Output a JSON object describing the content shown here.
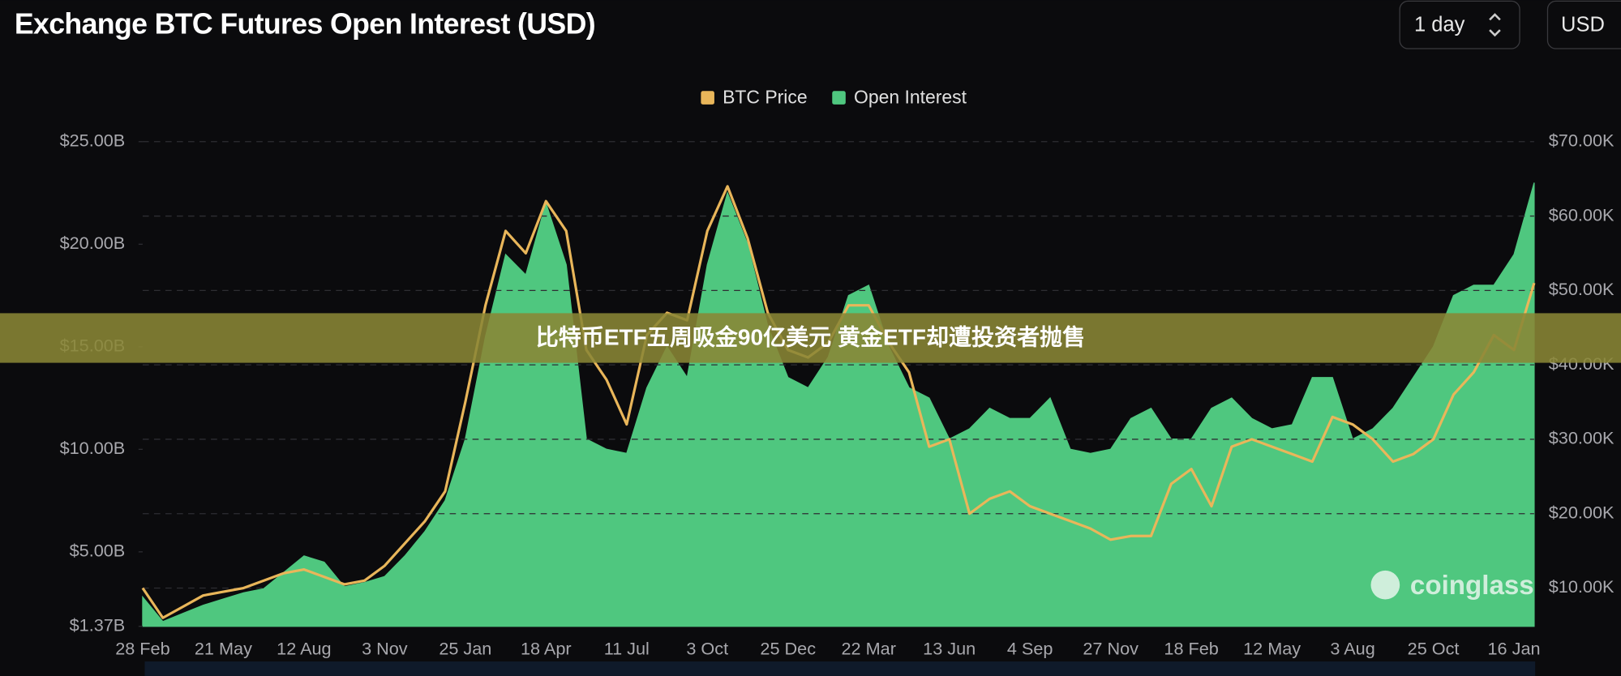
{
  "chart_data": {
    "type": "area-line",
    "title": "Exchange BTC Futures Open Interest (USD)",
    "categories": [
      "28 Feb",
      null,
      null,
      null,
      "21 May",
      null,
      null,
      null,
      "12 Aug",
      null,
      null,
      null,
      "3 Nov",
      null,
      null,
      null,
      "25 Jan",
      null,
      null,
      null,
      "18 Apr",
      null,
      null,
      null,
      "11 Jul",
      null,
      null,
      null,
      "3 Oct",
      null,
      null,
      null,
      "25 Dec",
      null,
      null,
      null,
      "22 Mar",
      null,
      null,
      null,
      "13 Jun",
      null,
      null,
      null,
      "4 Sep",
      null,
      null,
      null,
      "27 Nov",
      null,
      null,
      null,
      "18 Feb",
      null,
      null,
      null,
      "12 May",
      null,
      null,
      null,
      "3 Aug",
      null,
      null,
      null,
      "25 Oct",
      null,
      null,
      null,
      "16 Jan",
      null
    ],
    "series": [
      {
        "name": "BTC Price",
        "color": "#e9b65a",
        "axis": "y2",
        "values": [
          10,
          6,
          7.5,
          9,
          9.5,
          10,
          11,
          12,
          12.5,
          11.5,
          10.5,
          11,
          13,
          16,
          19,
          23,
          35,
          48,
          58,
          55,
          62,
          58,
          42,
          38,
          32,
          44,
          47,
          46,
          58,
          64,
          57,
          47,
          42,
          41,
          43,
          48,
          48,
          43,
          39,
          29,
          30,
          20,
          22,
          23,
          21,
          20,
          19,
          18,
          16.5,
          17,
          17,
          24,
          26,
          21,
          29,
          30,
          29,
          28,
          27,
          33,
          32,
          30,
          27,
          28,
          30,
          36,
          39,
          44,
          42,
          51
        ]
      },
      {
        "name": "Open Interest",
        "color": "#4fc77f",
        "values": [
          2.8,
          1.6,
          2.0,
          2.4,
          2.7,
          3.0,
          3.2,
          4.0,
          4.8,
          4.5,
          3.3,
          3.5,
          3.8,
          4.8,
          6.0,
          7.5,
          10.5,
          15.5,
          19.5,
          18.5,
          22.0,
          19.0,
          10.5,
          10.0,
          9.8,
          13.0,
          15.0,
          13.5,
          19.0,
          22.5,
          20.0,
          16.0,
          13.5,
          13.0,
          14.5,
          17.5,
          18.0,
          15.0,
          13.0,
          12.5,
          10.5,
          11.0,
          12.0,
          11.5,
          11.5,
          12.5,
          10.0,
          9.8,
          10.0,
          11.5,
          12.0,
          10.5,
          10.5,
          12.0,
          12.5,
          11.5,
          11.0,
          11.2,
          13.5,
          13.5,
          10.5,
          11.0,
          12.0,
          13.5,
          15.0,
          17.5,
          18.0,
          18.0,
          19.5,
          23.0
        ]
      }
    ],
    "ylim": [
      1.37,
      25
    ],
    "yticks": [
      {
        "value": 1.37,
        "label": "$1.37B"
      },
      {
        "value": 5,
        "label": "$5.00B"
      },
      {
        "value": 10,
        "label": "$10.00B"
      },
      {
        "value": 15,
        "label": "$15.00B"
      },
      {
        "value": 20,
        "label": "$20.00B"
      },
      {
        "value": 25,
        "label": "$25.00B"
      }
    ],
    "y2lim": [
      4.86,
      70
    ],
    "y2ticks": [
      {
        "value": 10,
        "label": "$10.00K"
      },
      {
        "value": 20,
        "label": "$20.00K"
      },
      {
        "value": 30,
        "label": "$30.00K"
      },
      {
        "value": 40,
        "label": "$40.00K"
      },
      {
        "value": 50,
        "label": "$50.00K"
      },
      {
        "value": 60,
        "label": "$60.00K"
      },
      {
        "value": 70,
        "label": "$70.00K"
      }
    ],
    "grid": true,
    "legend": "top"
  },
  "controls": {
    "interval": "1 day",
    "currency": "USD"
  },
  "banner": "比特币ETF五周吸金90亿美元 黄金ETF却遭投资者抛售",
  "watermark": "coinglass"
}
